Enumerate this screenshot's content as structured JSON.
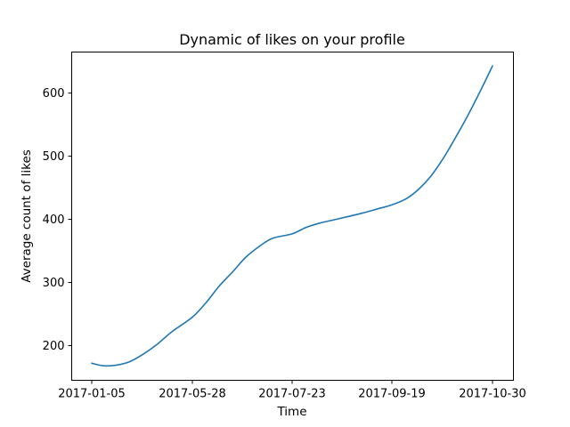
{
  "chart_data": {
    "type": "line",
    "title": "Dynamic of likes on your profile",
    "xlabel": "Time",
    "ylabel": "Average count of likes",
    "x_ticks": [
      "2017-01-05",
      "2017-05-28",
      "2017-07-23",
      "2017-09-19",
      "2017-10-30"
    ],
    "y_ticks": [
      200,
      300,
      400,
      500,
      600
    ],
    "ylim": [
      145,
      665
    ],
    "grid": false,
    "legend": "none",
    "colors": {
      "line": "#1f77b4"
    },
    "series": [
      {
        "x": [
          "2017-01-05",
          "2017-01-22",
          "2017-02-09",
          "2017-03-01",
          "2017-03-20",
          "2017-04-09",
          "2017-04-29",
          "2017-05-28",
          "2017-06-05",
          "2017-06-12",
          "2017-06-20",
          "2017-06-27",
          "2017-07-05",
          "2017-07-12",
          "2017-07-23",
          "2017-07-31",
          "2017-08-08",
          "2017-08-16",
          "2017-08-24",
          "2017-09-02",
          "2017-09-10",
          "2017-09-19",
          "2017-09-25",
          "2017-09-30",
          "2017-10-05",
          "2017-10-10",
          "2017-10-15",
          "2017-10-20",
          "2017-10-25",
          "2017-10-30"
        ],
        "y": [
          172,
          168,
          169,
          175,
          187,
          203,
          222,
          245,
          269,
          294,
          318,
          340,
          358,
          370,
          377,
          387,
          394,
          399,
          404,
          410,
          416,
          423,
          433,
          448,
          469,
          497,
          530,
          565,
          603,
          643
        ]
      }
    ]
  }
}
